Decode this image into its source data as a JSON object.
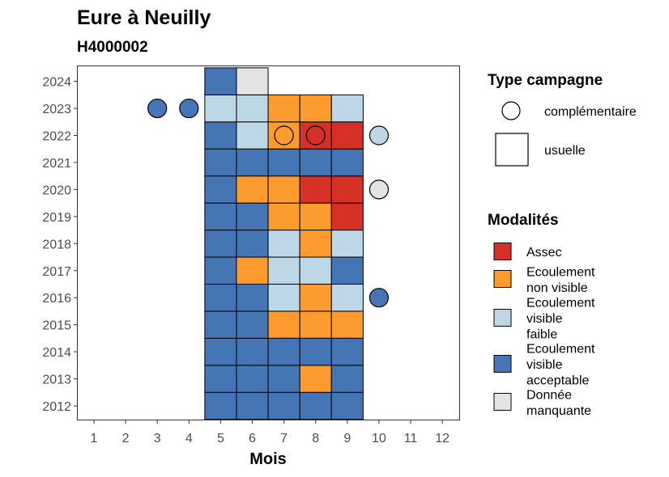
{
  "chart_data": {
    "type": "heatmap",
    "title": "Eure à Neuilly",
    "subtitle": "H4000002",
    "xlabel": "Mois",
    "ylabel": "",
    "x_ticks": [
      1,
      2,
      3,
      4,
      5,
      6,
      7,
      8,
      9,
      10,
      11,
      12
    ],
    "y_ticks": [
      2012,
      2013,
      2014,
      2015,
      2016,
      2017,
      2018,
      2019,
      2020,
      2021,
      2022,
      2023,
      2024
    ],
    "grid": false,
    "legend_position": "right",
    "categories": {
      "assec": {
        "label": "Assec",
        "color": "#d73027"
      },
      "non_visible": {
        "label": "Ecoulement non visible",
        "color": "#fd9b2e"
      },
      "faible": {
        "label": "Ecoulement visible faible",
        "color": "#bdd7e7"
      },
      "acceptable": {
        "label": "Ecoulement visible acceptable",
        "color": "#4575b4"
      },
      "manquante": {
        "label": "Donnée manquante",
        "color": "#e3e3e3"
      }
    },
    "legend_modalites": {
      "title": "Modalités",
      "items": [
        {
          "key": "assec",
          "lines": [
            "Assec"
          ]
        },
        {
          "key": "non_visible",
          "lines": [
            "Ecoulement",
            "non visible"
          ]
        },
        {
          "key": "faible",
          "lines": [
            "Ecoulement",
            "visible",
            "faible"
          ]
        },
        {
          "key": "acceptable",
          "lines": [
            "Ecoulement",
            "visible",
            "acceptable"
          ]
        },
        {
          "key": "manquante",
          "lines": [
            "Donnée",
            "manquante"
          ]
        }
      ]
    },
    "legend_campagne": {
      "title": "Type campagne",
      "items": [
        {
          "shape": "circle",
          "label": "complémentaire"
        },
        {
          "shape": "square",
          "label": "usuelle"
        }
      ]
    },
    "usuelle": [
      {
        "year": 2012,
        "month": 5,
        "value": "acceptable"
      },
      {
        "year": 2012,
        "month": 6,
        "value": "acceptable"
      },
      {
        "year": 2012,
        "month": 7,
        "value": "acceptable"
      },
      {
        "year": 2012,
        "month": 8,
        "value": "acceptable"
      },
      {
        "year": 2012,
        "month": 9,
        "value": "acceptable"
      },
      {
        "year": 2013,
        "month": 5,
        "value": "acceptable"
      },
      {
        "year": 2013,
        "month": 6,
        "value": "acceptable"
      },
      {
        "year": 2013,
        "month": 7,
        "value": "acceptable"
      },
      {
        "year": 2013,
        "month": 8,
        "value": "non_visible"
      },
      {
        "year": 2013,
        "month": 9,
        "value": "acceptable"
      },
      {
        "year": 2014,
        "month": 5,
        "value": "acceptable"
      },
      {
        "year": 2014,
        "month": 6,
        "value": "acceptable"
      },
      {
        "year": 2014,
        "month": 7,
        "value": "acceptable"
      },
      {
        "year": 2014,
        "month": 8,
        "value": "acceptable"
      },
      {
        "year": 2014,
        "month": 9,
        "value": "acceptable"
      },
      {
        "year": 2015,
        "month": 5,
        "value": "acceptable"
      },
      {
        "year": 2015,
        "month": 6,
        "value": "acceptable"
      },
      {
        "year": 2015,
        "month": 7,
        "value": "non_visible"
      },
      {
        "year": 2015,
        "month": 8,
        "value": "non_visible"
      },
      {
        "year": 2015,
        "month": 9,
        "value": "non_visible"
      },
      {
        "year": 2016,
        "month": 5,
        "value": "acceptable"
      },
      {
        "year": 2016,
        "month": 6,
        "value": "acceptable"
      },
      {
        "year": 2016,
        "month": 7,
        "value": "faible"
      },
      {
        "year": 2016,
        "month": 8,
        "value": "non_visible"
      },
      {
        "year": 2016,
        "month": 9,
        "value": "faible"
      },
      {
        "year": 2017,
        "month": 5,
        "value": "acceptable"
      },
      {
        "year": 2017,
        "month": 6,
        "value": "non_visible"
      },
      {
        "year": 2017,
        "month": 7,
        "value": "faible"
      },
      {
        "year": 2017,
        "month": 8,
        "value": "faible"
      },
      {
        "year": 2017,
        "month": 9,
        "value": "acceptable"
      },
      {
        "year": 2018,
        "month": 5,
        "value": "acceptable"
      },
      {
        "year": 2018,
        "month": 6,
        "value": "acceptable"
      },
      {
        "year": 2018,
        "month": 7,
        "value": "faible"
      },
      {
        "year": 2018,
        "month": 8,
        "value": "non_visible"
      },
      {
        "year": 2018,
        "month": 9,
        "value": "faible"
      },
      {
        "year": 2019,
        "month": 5,
        "value": "acceptable"
      },
      {
        "year": 2019,
        "month": 6,
        "value": "acceptable"
      },
      {
        "year": 2019,
        "month": 7,
        "value": "non_visible"
      },
      {
        "year": 2019,
        "month": 8,
        "value": "non_visible"
      },
      {
        "year": 2019,
        "month": 9,
        "value": "assec"
      },
      {
        "year": 2020,
        "month": 5,
        "value": "acceptable"
      },
      {
        "year": 2020,
        "month": 6,
        "value": "non_visible"
      },
      {
        "year": 2020,
        "month": 7,
        "value": "non_visible"
      },
      {
        "year": 2020,
        "month": 8,
        "value": "assec"
      },
      {
        "year": 2020,
        "month": 9,
        "value": "assec"
      },
      {
        "year": 2021,
        "month": 5,
        "value": "acceptable"
      },
      {
        "year": 2021,
        "month": 6,
        "value": "acceptable"
      },
      {
        "year": 2021,
        "month": 7,
        "value": "acceptable"
      },
      {
        "year": 2021,
        "month": 8,
        "value": "acceptable"
      },
      {
        "year": 2021,
        "month": 9,
        "value": "acceptable"
      },
      {
        "year": 2022,
        "month": 5,
        "value": "acceptable"
      },
      {
        "year": 2022,
        "month": 6,
        "value": "faible"
      },
      {
        "year": 2022,
        "month": 7,
        "value": "non_visible"
      },
      {
        "year": 2022,
        "month": 8,
        "value": "assec"
      },
      {
        "year": 2022,
        "month": 9,
        "value": "assec"
      },
      {
        "year": 2023,
        "month": 5,
        "value": "faible"
      },
      {
        "year": 2023,
        "month": 6,
        "value": "faible"
      },
      {
        "year": 2023,
        "month": 7,
        "value": "non_visible"
      },
      {
        "year": 2023,
        "month": 8,
        "value": "non_visible"
      },
      {
        "year": 2023,
        "month": 9,
        "value": "faible"
      },
      {
        "year": 2024,
        "month": 5,
        "value": "acceptable"
      },
      {
        "year": 2024,
        "month": 6,
        "value": "manquante"
      }
    ],
    "complementaire": [
      {
        "year": 2023,
        "month": 3,
        "value": "acceptable"
      },
      {
        "year": 2023,
        "month": 4,
        "value": "acceptable"
      },
      {
        "year": 2022,
        "month": 7,
        "value": "non_visible"
      },
      {
        "year": 2022,
        "month": 8,
        "value": "assec"
      },
      {
        "year": 2022,
        "month": 10,
        "value": "faible"
      },
      {
        "year": 2020,
        "month": 10,
        "value": "manquante"
      },
      {
        "year": 2016,
        "month": 10,
        "value": "acceptable"
      }
    ]
  }
}
